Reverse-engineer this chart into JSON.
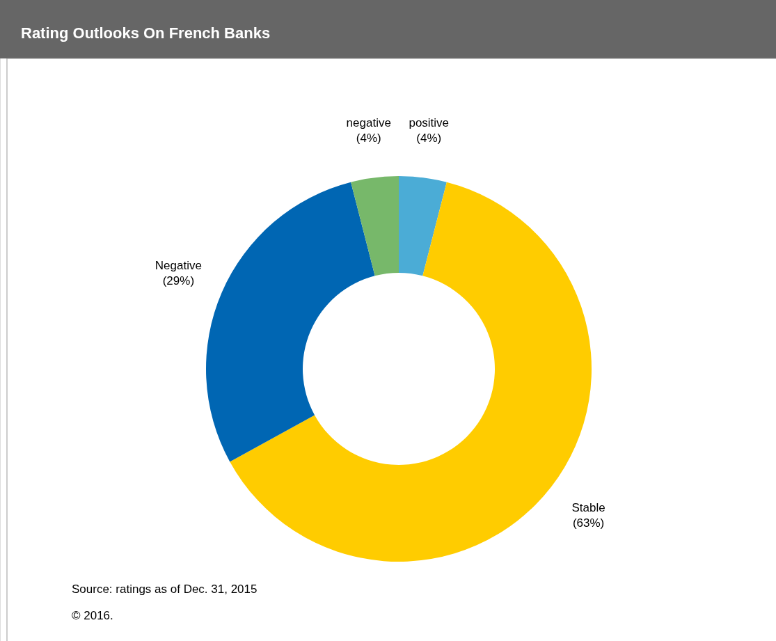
{
  "chart_data": {
    "type": "donut",
    "title": "Rating Outlooks  On French Banks",
    "categories": [
      "positive",
      "Stable",
      "Negative",
      "negative"
    ],
    "values": [
      4,
      63,
      29,
      4
    ],
    "colors": [
      "#4bacd6",
      "#ffcc00",
      "#0066b3",
      "#77b86a"
    ],
    "value_labels": [
      "(4%)",
      "(63%)",
      "(29%)",
      "(4%)"
    ],
    "annotations": [
      "Source: ratings as of Dec. 31, 2015",
      "© 2016."
    ]
  }
}
